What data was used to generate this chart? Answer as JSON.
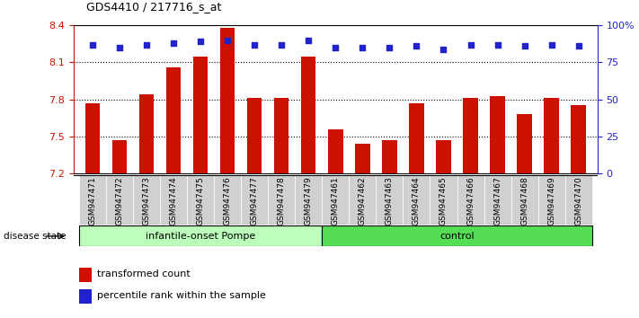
{
  "title": "GDS4410 / 217716_s_at",
  "samples": [
    "GSM947471",
    "GSM947472",
    "GSM947473",
    "GSM947474",
    "GSM947475",
    "GSM947476",
    "GSM947477",
    "GSM947478",
    "GSM947479",
    "GSM947461",
    "GSM947462",
    "GSM947463",
    "GSM947464",
    "GSM947465",
    "GSM947466",
    "GSM947467",
    "GSM947468",
    "GSM947469",
    "GSM947470"
  ],
  "bar_values": [
    7.77,
    7.47,
    7.84,
    8.06,
    8.15,
    8.38,
    7.81,
    7.81,
    8.15,
    7.56,
    7.44,
    7.47,
    7.77,
    7.47,
    7.81,
    7.83,
    7.68,
    7.81,
    7.75
  ],
  "percentile_values": [
    87,
    85,
    87,
    88,
    89,
    90,
    87,
    87,
    90,
    85,
    85,
    85,
    86,
    84,
    87,
    87,
    86,
    87,
    86
  ],
  "bar_color": "#cc1100",
  "dot_color": "#2222cc",
  "ymin": 7.2,
  "ymax": 8.4,
  "yright_min": 0,
  "yright_max": 100,
  "yticks_left": [
    7.2,
    7.5,
    7.8,
    8.1,
    8.4
  ],
  "yticks_right": [
    0,
    25,
    50,
    75,
    100
  ],
  "ytick_labels_right": [
    "0",
    "25",
    "50",
    "75",
    "100%"
  ],
  "group1_label": "infantile-onset Pompe",
  "group2_label": "control",
  "group1_count": 9,
  "group2_count": 10,
  "disease_state_label": "disease state",
  "legend_bar_label": "transformed count",
  "legend_dot_label": "percentile rank within the sample",
  "group1_color": "#bbffbb",
  "group2_color": "#55dd55",
  "tick_bg_color": "#d0d0d0",
  "background_color": "#ffffff"
}
